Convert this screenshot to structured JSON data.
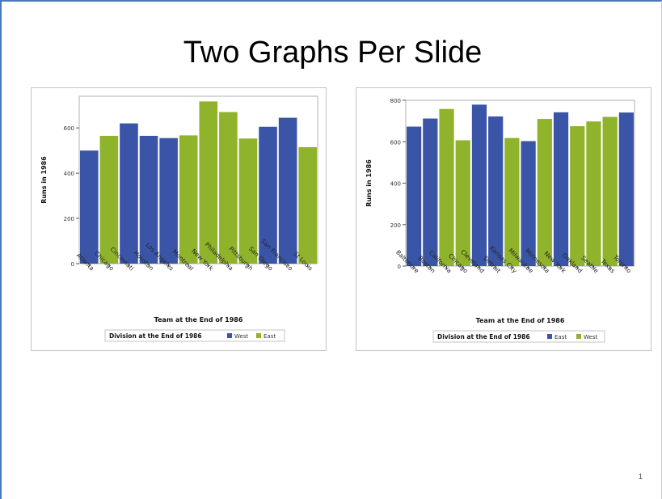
{
  "slide": {
    "title": "Two Graphs Per Slide",
    "page_number": "1"
  },
  "chart_data": [
    {
      "type": "bar",
      "categories": [
        "Atlanta",
        "Chicago",
        "Cincinnati",
        "Houston",
        "Los Angeles",
        "Montreal",
        "New York",
        "Philadelphia",
        "Pittsburgh",
        "San Diego",
        "San Francisco",
        "St Louis"
      ],
      "values": [
        500,
        565,
        620,
        565,
        555,
        567,
        717,
        670,
        553,
        605,
        645,
        515
      ],
      "groups": [
        "West",
        "East",
        "West",
        "West",
        "West",
        "East",
        "East",
        "East",
        "East",
        "West",
        "West",
        "East"
      ],
      "xlabel": "Team at the End of 1986",
      "ylabel": "Runs in 1986",
      "ylim": [
        0,
        740
      ],
      "yticks": [
        0,
        200,
        400,
        600
      ],
      "legend": {
        "title": "Division at the End of 1986",
        "entries": [
          {
            "name": "West",
            "color": "#3a55a8"
          },
          {
            "name": "East",
            "color": "#8fb32a"
          }
        ],
        "placement": "bottom"
      },
      "grid": false
    },
    {
      "type": "bar",
      "categories": [
        "Baltimore",
        "Boston",
        "California",
        "Chicago",
        "Cleveland",
        "Detroit",
        "Kansas City",
        "Milwaukee",
        "Minnesota",
        "New York",
        "Oakland",
        "Seattle",
        "Texas",
        "Toronto"
      ],
      "values": [
        673,
        712,
        758,
        607,
        779,
        722,
        618,
        603,
        710,
        742,
        675,
        698,
        720,
        741
      ],
      "groups": [
        "East",
        "East",
        "West",
        "West",
        "East",
        "East",
        "West",
        "East",
        "West",
        "East",
        "West",
        "West",
        "West",
        "East"
      ],
      "xlabel": "Team at the End of 1986",
      "ylabel": "Runs in 1986",
      "ylim": [
        0,
        800
      ],
      "yticks": [
        0,
        200,
        400,
        600,
        800
      ],
      "legend": {
        "title": "Division at the End of 1986",
        "entries": [
          {
            "name": "East",
            "color": "#3a55a8"
          },
          {
            "name": "West",
            "color": "#8fb32a"
          }
        ],
        "placement": "bottom"
      },
      "grid": false
    }
  ]
}
